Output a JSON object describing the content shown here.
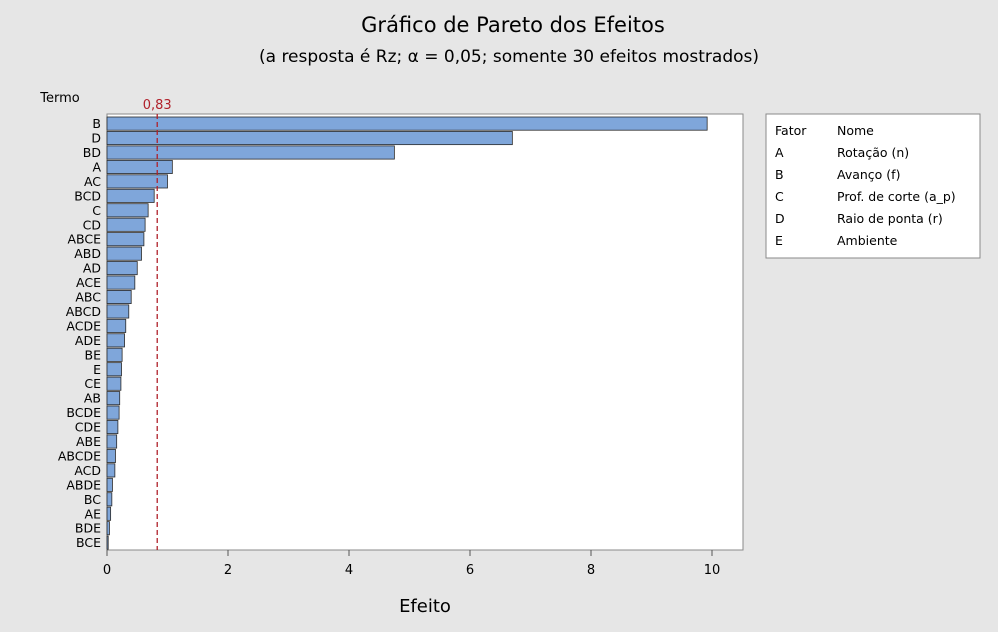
{
  "chart_data": {
    "type": "bar",
    "orientation": "horizontal",
    "title": "Gráfico de Pareto dos Efeitos",
    "subtitle": "(a resposta é Rz; α = 0,05; somente 30 efeitos mostrados)",
    "xlabel": "Efeito",
    "ylabel": "Termo",
    "xlim": [
      0,
      10.5
    ],
    "xticks": [
      "0",
      "2",
      "4",
      "6",
      "8",
      "10"
    ],
    "grid": false,
    "reference_line": {
      "value": 0.83,
      "label": "0,83",
      "color": "#b0202a"
    },
    "bar_color": "#7fa6da",
    "categories": [
      "B",
      "D",
      "BD",
      "A",
      "AC",
      "BCD",
      "C",
      "CD",
      "ABCE",
      "ABD",
      "AD",
      "ACE",
      "ABC",
      "ABCD",
      "ACDE",
      "ADE",
      "BE",
      "E",
      "CE",
      "AB",
      "BCDE",
      "CDE",
      "ABE",
      "ABCDE",
      "ACD",
      "ABDE",
      "BC",
      "AE",
      "BDE",
      "BCE"
    ],
    "values": [
      9.92,
      6.7,
      4.75,
      1.08,
      1.0,
      0.78,
      0.68,
      0.63,
      0.61,
      0.57,
      0.5,
      0.46,
      0.4,
      0.36,
      0.31,
      0.29,
      0.25,
      0.24,
      0.23,
      0.21,
      0.2,
      0.18,
      0.16,
      0.14,
      0.13,
      0.09,
      0.08,
      0.06,
      0.04,
      0.02
    ],
    "legend": {
      "position": "right",
      "header": [
        "Fator",
        "Nome"
      ],
      "rows": [
        [
          "A",
          "Rotação (n)"
        ],
        [
          "B",
          "Avanço (f)"
        ],
        [
          "C",
          "Prof. de corte (a_p)"
        ],
        [
          "D",
          "Raio de ponta (r)"
        ],
        [
          "E",
          "Ambiente"
        ]
      ]
    }
  }
}
